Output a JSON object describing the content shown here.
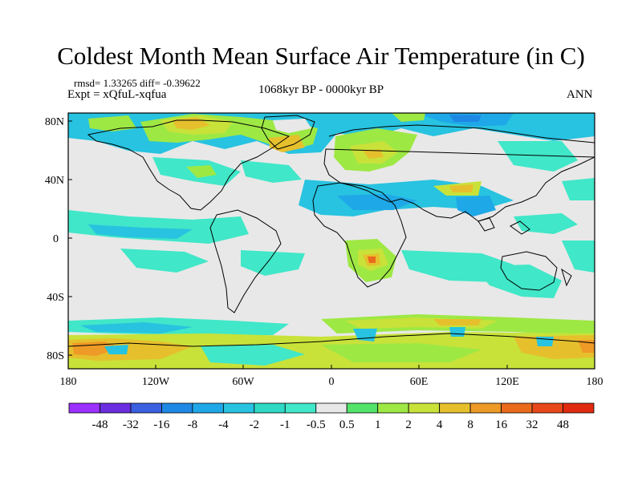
{
  "header": {
    "title": "Coldest Month Mean Surface Air Temperature (in C)",
    "stats": "rmsd= 1.33265 diff= -0.39622",
    "experiment": "Expt = xQfuL-xqfua",
    "period": "1068kyr BP - 0000kyr BP",
    "season": "ANN"
  },
  "axes": {
    "lat_ticks": [
      "80N",
      "40N",
      "0",
      "40S",
      "80S"
    ],
    "lon_ticks": [
      "180",
      "120W",
      "60W",
      "0",
      "60E",
      "120E",
      "180"
    ]
  },
  "colorbar": {
    "labels": [
      "-48",
      "-32",
      "-16",
      "-8",
      "-4",
      "-2",
      "-1",
      "-0.5",
      "0.5",
      "1",
      "2",
      "4",
      "8",
      "16",
      "32",
      "48"
    ],
    "colors": [
      "#9b30ff",
      "#6a2de0",
      "#3a5fe0",
      "#1e88e5",
      "#1fa8e8",
      "#27c3e0",
      "#2fd9c4",
      "#40e7c8",
      "#e8e8e8",
      "#52e36a",
      "#9ee844",
      "#c8e23a",
      "#e6c02c",
      "#ee9a26",
      "#ea6a1c",
      "#e84818",
      "#e02a10"
    ]
  },
  "map_colors": {
    "ocean_background": "#e8e8e8",
    "coast": "#000000"
  }
}
